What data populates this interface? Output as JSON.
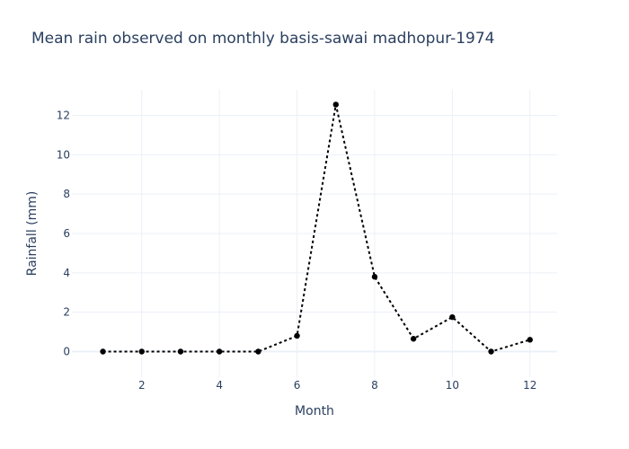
{
  "chart_data": {
    "type": "line",
    "title": "Mean rain observed on monthly basis-sawai madhopur-1974",
    "xlabel": "Month",
    "ylabel": "Rainfall (mm)",
    "x": [
      1,
      2,
      3,
      4,
      5,
      6,
      7,
      8,
      9,
      10,
      11,
      12
    ],
    "series": [
      {
        "values": [
          0,
          0,
          0,
          0,
          0,
          0.8,
          12.55,
          3.8,
          0.65,
          1.75,
          0,
          0.6
        ]
      }
    ],
    "xlim": [
      0.2,
      12.7
    ],
    "ylim": [
      -1.3,
      13.3
    ],
    "xticks": [
      2,
      4,
      6,
      8,
      10,
      12
    ],
    "yticks": [
      0,
      2,
      4,
      6,
      8,
      10,
      12
    ],
    "grid": true,
    "legend": "none",
    "line_style": "dotted",
    "line_color": "#000000",
    "marker": "circle"
  }
}
